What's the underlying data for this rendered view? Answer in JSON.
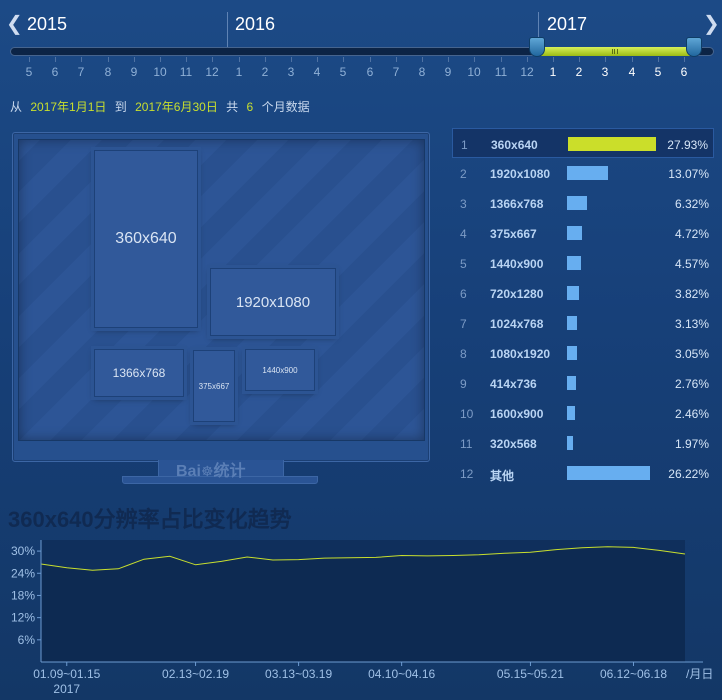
{
  "timeline": {
    "years": [
      "2015",
      "2016",
      "2017"
    ],
    "prev_icon": "chevron-left-icon",
    "next_icon": "chevron-right-icon",
    "months": [
      "5",
      "6",
      "7",
      "8",
      "9",
      "10",
      "11",
      "12",
      "1",
      "2",
      "3",
      "4",
      "5",
      "6",
      "7",
      "8",
      "9",
      "10",
      "11",
      "12",
      "1",
      "2",
      "3",
      "4",
      "5",
      "6"
    ],
    "selected_from_index": 20,
    "selected_to_index": 25
  },
  "summary": {
    "prefix": "从",
    "start": "2017年1月1日",
    "to": "到",
    "end": "2017年6月30日",
    "total": "共",
    "count": "6",
    "suffix": "个月数据"
  },
  "monitor": {
    "brand": "Bai百统计",
    "boxes": [
      "360x640",
      "1920x1080",
      "1366x768",
      "375x667",
      "1440x900"
    ]
  },
  "ranking": [
    {
      "rank": "1",
      "name": "360x640",
      "value": 27.93,
      "pct": "27.93%"
    },
    {
      "rank": "2",
      "name": "1920x1080",
      "value": 13.07,
      "pct": "13.07%"
    },
    {
      "rank": "3",
      "name": "1366x768",
      "value": 6.32,
      "pct": "6.32%"
    },
    {
      "rank": "4",
      "name": "375x667",
      "value": 4.72,
      "pct": "4.72%"
    },
    {
      "rank": "5",
      "name": "1440x900",
      "value": 4.57,
      "pct": "4.57%"
    },
    {
      "rank": "6",
      "name": "720x1280",
      "value": 3.82,
      "pct": "3.82%"
    },
    {
      "rank": "7",
      "name": "1024x768",
      "value": 3.13,
      "pct": "3.13%"
    },
    {
      "rank": "8",
      "name": "1080x1920",
      "value": 3.05,
      "pct": "3.05%"
    },
    {
      "rank": "9",
      "name": "414x736",
      "value": 2.76,
      "pct": "2.76%"
    },
    {
      "rank": "10",
      "name": "1600x900",
      "value": 2.46,
      "pct": "2.46%"
    },
    {
      "rank": "11",
      "name": "320x568",
      "value": 1.97,
      "pct": "1.97%"
    },
    {
      "rank": "12",
      "name": "其他",
      "value": 26.22,
      "pct": "26.22%"
    }
  ],
  "colors": {
    "accent": "#cbde2a",
    "bar": "#67aef0",
    "line": "#c8df2e"
  },
  "chart_data": {
    "type": "area",
    "title": "360x640分辨率占比变化趋势",
    "xlabel": "/月日",
    "ylabel": "",
    "y_ticks": [
      "6%",
      "12%",
      "18%",
      "24%",
      "30%"
    ],
    "y_tick_values": [
      6,
      12,
      18,
      24,
      30
    ],
    "ylim": [
      0,
      33
    ],
    "x_tick_labels": [
      "01.09~01.15",
      "02.13~02.19",
      "03.13~03.19",
      "04.10~04.16",
      "05.15~05.21",
      "06.12~06.18"
    ],
    "x_tick_weeks": [
      1,
      6,
      10,
      14,
      19,
      23
    ],
    "x_sublabel": "2017",
    "weeks": [
      0,
      1,
      2,
      3,
      4,
      5,
      6,
      7,
      8,
      9,
      10,
      11,
      12,
      13,
      14,
      15,
      16,
      17,
      18,
      19,
      20,
      21,
      22,
      23,
      24,
      25
    ],
    "values": [
      26.5,
      25.5,
      24.8,
      25.2,
      27.8,
      28.6,
      26.3,
      27.2,
      28.4,
      27.6,
      27.7,
      28.1,
      28.2,
      28.3,
      28.8,
      28.7,
      28.8,
      29.0,
      29.4,
      29.7,
      30.4,
      30.9,
      31.2,
      31.0,
      30.2,
      29.2
    ],
    "grid": false,
    "legend": "none"
  }
}
